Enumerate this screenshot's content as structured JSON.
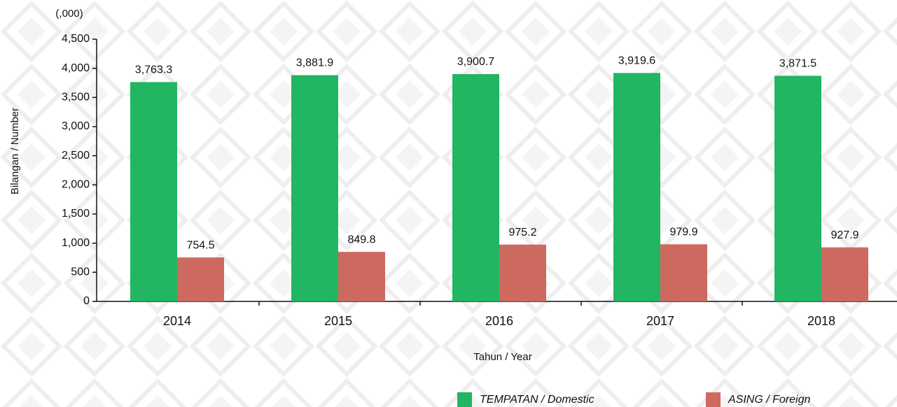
{
  "chart_data": {
    "type": "bar",
    "title": "(,000)",
    "x_label": "Tahun / Year",
    "y_label": "Bilangan / Number",
    "categories": [
      "2014",
      "2015",
      "2016",
      "2017",
      "2018"
    ],
    "series": [
      {
        "name": "TEMPATAN / Domestic",
        "color": "#22b562",
        "values": [
          3763.3,
          3881.9,
          3900.7,
          3919.6,
          3871.5
        ],
        "value_labels": [
          "3,763.3",
          "3,881.9",
          "3,900.7",
          "3,919.6",
          "3,871.5"
        ]
      },
      {
        "name": "ASING / Foreign",
        "color": "#cd6a60",
        "values": [
          754.5,
          849.8,
          975.2,
          979.9,
          927.9
        ],
        "value_labels": [
          "754.5",
          "849.8",
          "975.2",
          "979.9",
          "927.9"
        ]
      }
    ],
    "ylim": [
      0,
      4500
    ],
    "yticks": [
      0,
      500,
      {
        "value": 1000,
        "label": "1,000"
      },
      {
        "value": 1500,
        "label": "1,500"
      },
      {
        "value": 2000,
        "label": "2,000"
      },
      {
        "value": 2500,
        "label": "2,500"
      },
      {
        "value": 3000,
        "label": "3,000"
      },
      {
        "value": 3500,
        "label": "3,500"
      },
      {
        "value": 4000,
        "label": "4,000"
      },
      {
        "value": 4500,
        "label": "4,500"
      }
    ],
    "grid": false,
    "legend": "bottom"
  }
}
